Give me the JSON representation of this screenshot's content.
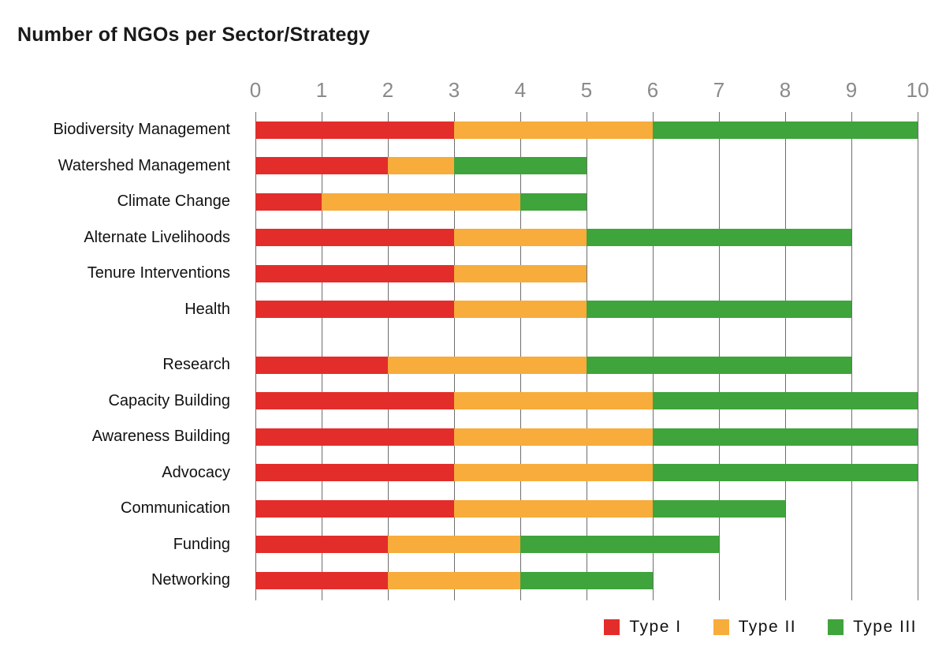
{
  "title": "Number of NGOs per Sector/Strategy",
  "chart_data": {
    "type": "bar",
    "orientation": "horizontal",
    "stacked": true,
    "title": "Number of NGOs per Sector/Strategy",
    "xlabel": "",
    "ylabel": "",
    "xlim": [
      0,
      10
    ],
    "x_ticks": [
      0,
      1,
      2,
      3,
      4,
      5,
      6,
      7,
      8,
      9,
      10
    ],
    "grid": true,
    "axis_position": "top",
    "legend_position": "bottom-right",
    "categories": [
      "Biodiversity Management",
      "Watershed Management",
      "Climate Change",
      "Alternate Livelihoods",
      "Tenure Interventions",
      "Health",
      "Research",
      "Capacity Building",
      "Awareness Building",
      "Advocacy",
      "Communication",
      "Funding",
      "Networking"
    ],
    "group_gap_after_index": 5,
    "series": [
      {
        "name": "Type I",
        "color": "#e32d2a",
        "values": [
          3,
          2,
          1,
          3,
          3,
          3,
          2,
          3,
          3,
          3,
          3,
          2,
          2
        ]
      },
      {
        "name": "Type II",
        "color": "#f7ac3b",
        "values": [
          3,
          1,
          3,
          2,
          2,
          2,
          3,
          3,
          3,
          3,
          3,
          2,
          2
        ]
      },
      {
        "name": "Type III",
        "color": "#3ea43b",
        "values": [
          4,
          2,
          1,
          4,
          0,
          4,
          4,
          4,
          4,
          4,
          2,
          3,
          2
        ]
      }
    ],
    "colors": {
      "gridline": "#6e6e6e",
      "tick_label": "#8a8a8a",
      "text": "#111111"
    }
  }
}
